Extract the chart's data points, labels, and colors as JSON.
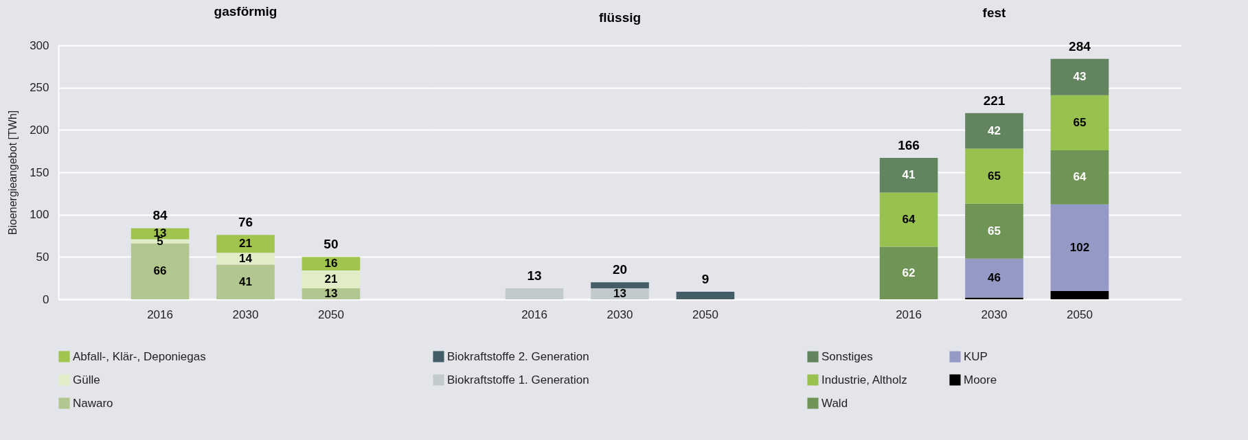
{
  "chart_data": [
    {
      "type": "bar",
      "title": "gasförmig",
      "ylabel": "Bioenergieangebot [TWh]",
      "categories": [
        "2016",
        "2030",
        "2050"
      ],
      "stacked": true,
      "ylim": [
        0,
        300
      ],
      "yticks": [
        0,
        50,
        100,
        150,
        200,
        250,
        300
      ],
      "grid": "y",
      "legend": "bottom",
      "totals": [
        "84",
        "76",
        "50"
      ],
      "series": [
        {
          "name": "Nawaro",
          "color": "#b2c78f",
          "values": [
            66,
            41,
            13
          ],
          "value_labels": [
            "66",
            "41",
            "13"
          ]
        },
        {
          "name": "Gülle",
          "color": "#e2edc8",
          "values": [
            5,
            14,
            21
          ],
          "value_labels": [
            "5",
            "14",
            "21"
          ]
        },
        {
          "name": "Abfall-, Klär-, Deponiegas",
          "color": "#a0c44e",
          "values": [
            13,
            21,
            16
          ],
          "value_labels": [
            "13",
            "21",
            "16"
          ]
        }
      ]
    },
    {
      "type": "bar",
      "title": "flüssig",
      "categories": [
        "2016",
        "2030",
        "2050"
      ],
      "stacked": true,
      "ylim": [
        0,
        300
      ],
      "yticks": [
        0,
        50,
        100,
        150,
        200,
        250,
        300
      ],
      "grid": "y",
      "legend": "bottom",
      "tick_labels": "x",
      "totals": [
        "13",
        "20",
        "9"
      ],
      "series": [
        {
          "name": "Biokraftstoffe 1. Generation",
          "color": "#c3cacc",
          "values": [
            13,
            13,
            null
          ],
          "value_labels": [
            null,
            "13",
            null
          ]
        },
        {
          "name": "Biokraftstoffe 2. Generation",
          "color": "#435e66",
          "values": [
            null,
            7,
            9
          ],
          "value_labels": [
            null,
            null,
            null
          ]
        }
      ]
    },
    {
      "type": "bar",
      "title": "fest",
      "categories": [
        "2016",
        "2030",
        "2050"
      ],
      "stacked": true,
      "ylim": [
        0,
        300
      ],
      "yticks": [
        0,
        50,
        100,
        150,
        200,
        250,
        300
      ],
      "grid": "y",
      "legend": "bottom",
      "tick_labels": "x",
      "totals": [
        "166",
        "221",
        "284"
      ],
      "series": [
        {
          "name": "Moore",
          "color": "#000000",
          "values": [
            null,
            2,
            10
          ],
          "value_labels": [
            null,
            null,
            null
          ]
        },
        {
          "name": "KUP",
          "color": "#9599c6",
          "values": [
            null,
            46,
            102
          ],
          "value_labels": [
            null,
            "46",
            "102"
          ]
        },
        {
          "name": "Wald",
          "color": "#6f9456",
          "values": [
            62,
            65,
            64
          ],
          "value_labels": [
            "62",
            "65",
            "64"
          ]
        },
        {
          "name": "Industrie, Altholz",
          "color": "#98c150",
          "values": [
            64,
            65,
            65
          ],
          "value_labels": [
            "64",
            "65",
            "65"
          ]
        },
        {
          "name": "Sonstiges",
          "color": "#62845e",
          "values": [
            41,
            42,
            43
          ],
          "value_labels": [
            "41",
            "42",
            "43"
          ]
        }
      ]
    }
  ]
}
